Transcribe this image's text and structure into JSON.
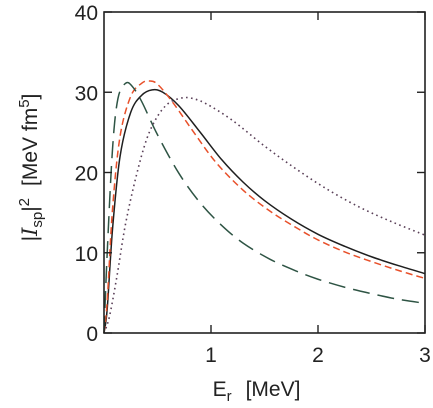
{
  "chart_data": {
    "type": "line",
    "xlabel": {
      "main": "E",
      "sub": "r",
      "unit": "[MeV]"
    },
    "ylabel": {
      "main": "|",
      "script": "I",
      "sub": "sp",
      "after": "|",
      "exp": "2",
      "unit": "[MeV fm",
      "unit_exp": "5",
      "unit_close": "]"
    },
    "xlim": [
      0,
      3
    ],
    "ylim": [
      0,
      40
    ],
    "x_ticks": [
      1,
      2,
      3
    ],
    "y_ticks": [
      0,
      10,
      20,
      30,
      40
    ],
    "grid": false,
    "series": [
      {
        "style": "solid",
        "color": "#1f1f1f",
        "points": [
          [
            0,
            0
          ],
          [
            0.03,
            3
          ],
          [
            0.08,
            13
          ],
          [
            0.15,
            22
          ],
          [
            0.25,
            27.5
          ],
          [
            0.35,
            29.6
          ],
          [
            0.45,
            30.3
          ],
          [
            0.55,
            30
          ],
          [
            0.7,
            28.3
          ],
          [
            0.9,
            25
          ],
          [
            1.1,
            21.6
          ],
          [
            1.3,
            18.8
          ],
          [
            1.5,
            16.5
          ],
          [
            1.75,
            14.2
          ],
          [
            2.0,
            12.3
          ],
          [
            2.25,
            10.8
          ],
          [
            2.5,
            9.5
          ],
          [
            2.75,
            8.4
          ],
          [
            3.0,
            7.4
          ]
        ]
      },
      {
        "style": "dashed",
        "color": "#e8502a",
        "points": [
          [
            0,
            0
          ],
          [
            0.03,
            4
          ],
          [
            0.08,
            15.5
          ],
          [
            0.15,
            24.5
          ],
          [
            0.25,
            29.5
          ],
          [
            0.35,
            31.1
          ],
          [
            0.42,
            31.4
          ],
          [
            0.5,
            31
          ],
          [
            0.65,
            28.6
          ],
          [
            0.85,
            24.8
          ],
          [
            1.05,
            21.2
          ],
          [
            1.3,
            17.8
          ],
          [
            1.55,
            15.2
          ],
          [
            1.8,
            13.1
          ],
          [
            2.0,
            11.6
          ],
          [
            2.25,
            10.1
          ],
          [
            2.5,
            8.9
          ],
          [
            2.75,
            7.8
          ],
          [
            3.0,
            6.8
          ]
        ]
      },
      {
        "style": "long-dashed",
        "color": "#2e5444",
        "points": [
          [
            0,
            0
          ],
          [
            0.03,
            10
          ],
          [
            0.08,
            23
          ],
          [
            0.13,
            29.2
          ],
          [
            0.2,
            31.1
          ],
          [
            0.26,
            30.8
          ],
          [
            0.35,
            28.9
          ],
          [
            0.5,
            24.7
          ],
          [
            0.7,
            19.9
          ],
          [
            0.9,
            16.2
          ],
          [
            1.1,
            13.4
          ],
          [
            1.3,
            11.2
          ],
          [
            1.55,
            9.2
          ],
          [
            1.8,
            7.7
          ],
          [
            2.0,
            6.7
          ],
          [
            2.25,
            5.7
          ],
          [
            2.5,
            4.9
          ],
          [
            2.75,
            4.2
          ],
          [
            3.0,
            3.7
          ]
        ]
      },
      {
        "style": "dotted",
        "color": "#5a4058",
        "points": [
          [
            0,
            0
          ],
          [
            0.05,
            2
          ],
          [
            0.12,
            7
          ],
          [
            0.2,
            13.5
          ],
          [
            0.3,
            19.5
          ],
          [
            0.4,
            24.2
          ],
          [
            0.5,
            27
          ],
          [
            0.6,
            28.6
          ],
          [
            0.7,
            29.2
          ],
          [
            0.8,
            29.3
          ],
          [
            0.95,
            28.6
          ],
          [
            1.2,
            26.5
          ],
          [
            1.5,
            23.3
          ],
          [
            1.8,
            20.4
          ],
          [
            2.1,
            17.8
          ],
          [
            2.4,
            15.6
          ],
          [
            2.7,
            13.8
          ],
          [
            3.0,
            12.2
          ]
        ]
      }
    ]
  }
}
